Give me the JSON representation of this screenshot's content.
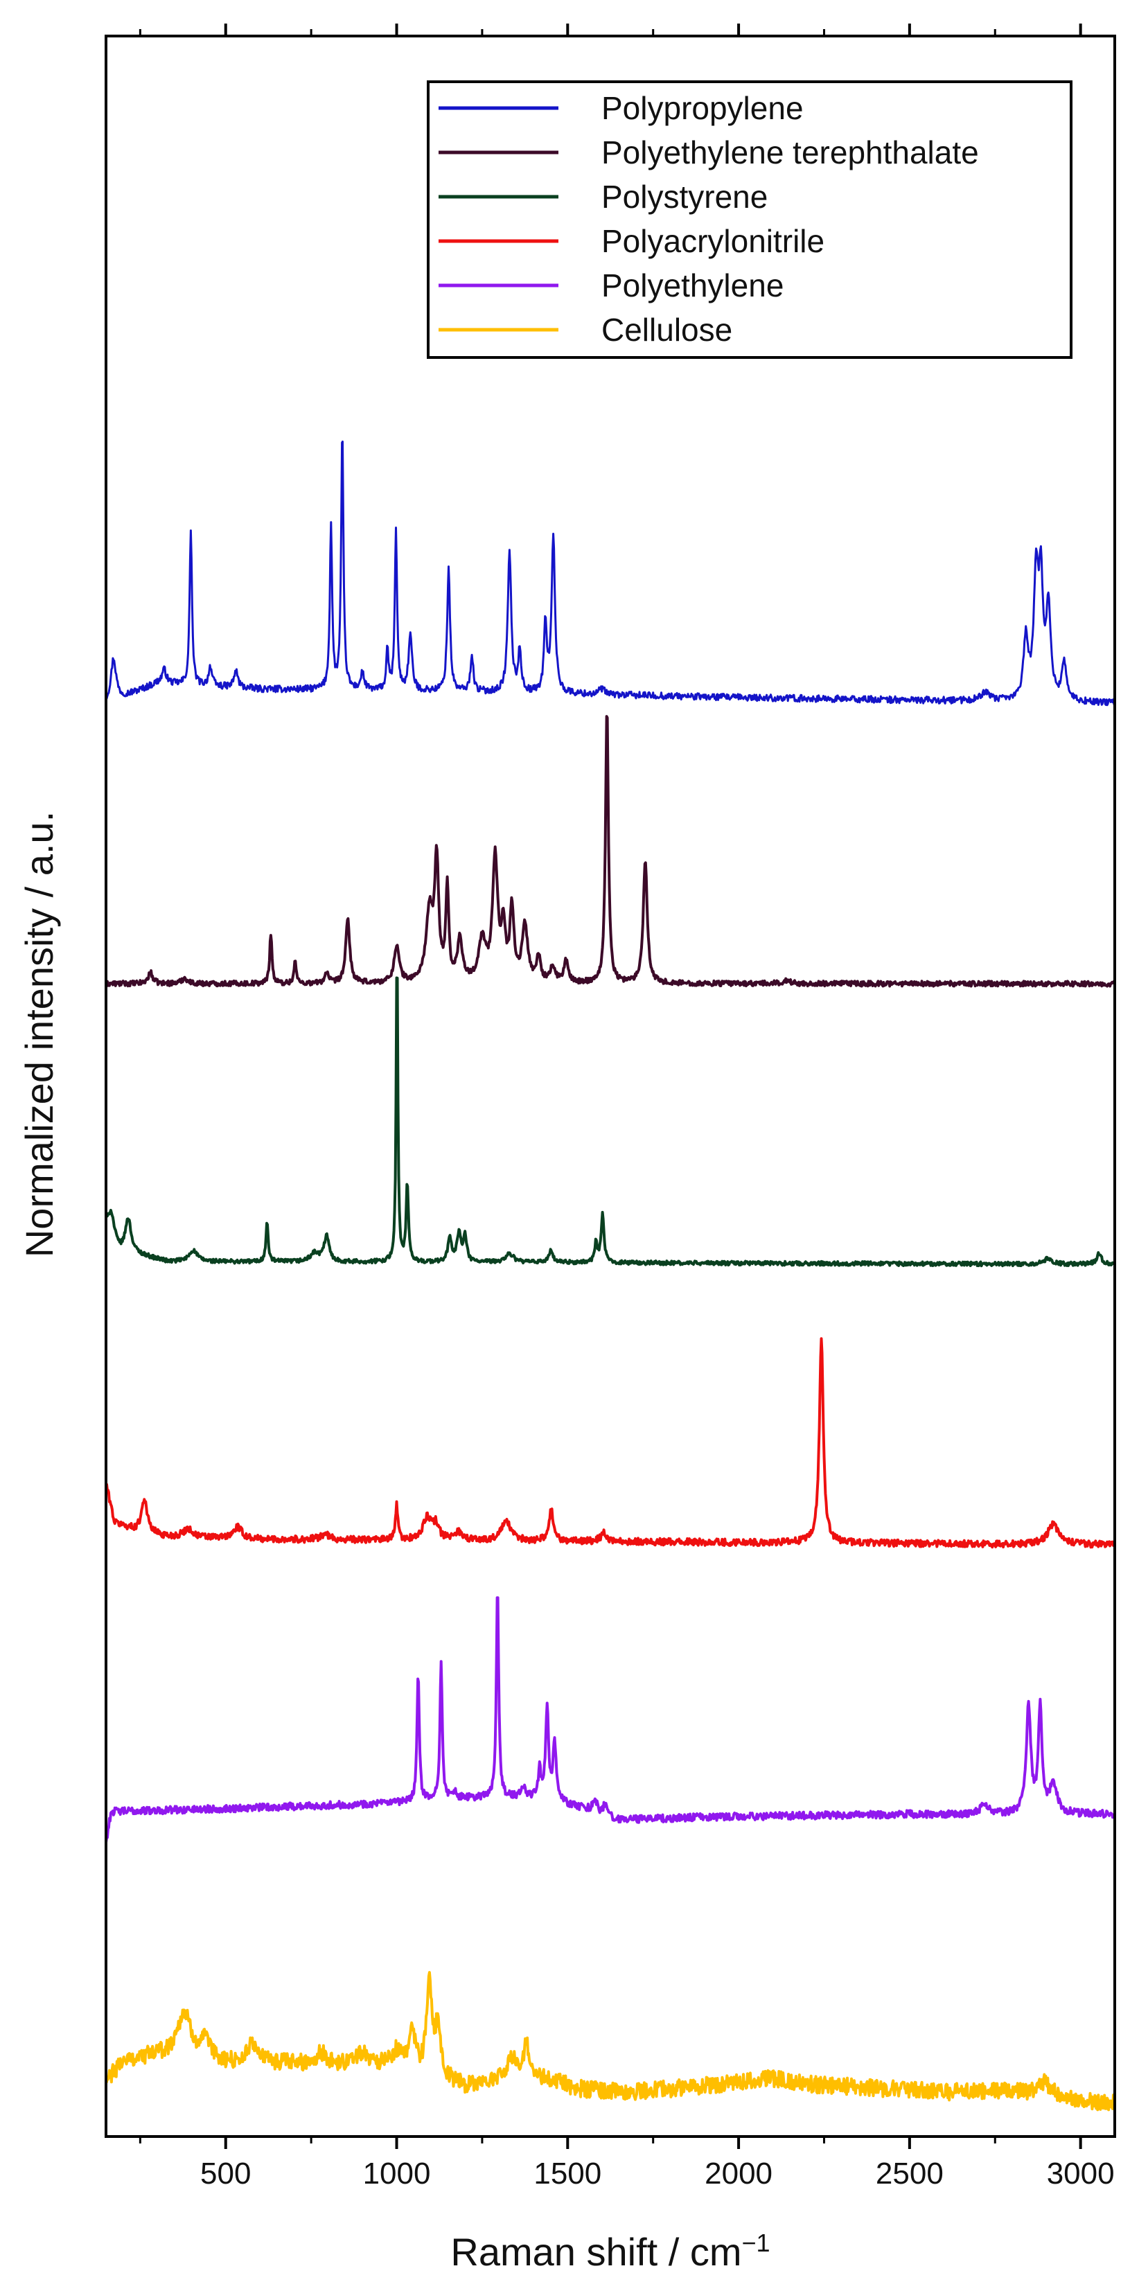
{
  "chart_data": {
    "type": "line",
    "title": "",
    "xlabel": "Raman shift / cm",
    "xlabel_superscript": "−1",
    "ylabel": "Normalized intensity / a.u.",
    "xlim": [
      150,
      3100
    ],
    "xticks": [
      500,
      1000,
      1500,
      2000,
      2500,
      3000
    ],
    "xtick_labels": [
      "500",
      "1000",
      "1500",
      "2000",
      "2500",
      "3000"
    ],
    "y_scale": "normalized, vertically offset traces; no y tick labels",
    "grid": false,
    "legend_position": "top-right",
    "series": [
      {
        "name": "Polypropylene",
        "color": "#1414c8",
        "offset": 5.0,
        "noise": 0.012,
        "baseline": [
          [
            150,
            0.0
          ],
          [
            300,
            0.07
          ],
          [
            600,
            0.05
          ],
          [
            1200,
            0.04
          ],
          [
            2000,
            0.02
          ],
          [
            3100,
            0.0
          ]
        ],
        "peaks": [
          [
            172,
            0.15,
            9
          ],
          [
            320,
            0.05,
            8
          ],
          [
            398,
            0.56,
            4
          ],
          [
            455,
            0.07,
            6
          ],
          [
            530,
            0.06,
            7
          ],
          [
            808,
            0.59,
            4
          ],
          [
            841,
            0.92,
            4
          ],
          [
            900,
            0.06,
            6
          ],
          [
            973,
            0.14,
            4
          ],
          [
            998,
            0.57,
            4
          ],
          [
            1040,
            0.2,
            6
          ],
          [
            1152,
            0.44,
            5
          ],
          [
            1220,
            0.13,
            5
          ],
          [
            1330,
            0.5,
            6
          ],
          [
            1360,
            0.15,
            5
          ],
          [
            1435,
            0.24,
            5
          ],
          [
            1458,
            0.55,
            6
          ],
          [
            1600,
            0.02,
            10
          ],
          [
            2720,
            0.03,
            15
          ],
          [
            2840,
            0.22,
            8
          ],
          [
            2870,
            0.43,
            8
          ],
          [
            2884,
            0.4,
            7
          ],
          [
            2906,
            0.33,
            8
          ],
          [
            2952,
            0.14,
            8
          ]
        ]
      },
      {
        "name": "Polyethylene terephthalate",
        "color": "#3c0a28",
        "offset": 4.0,
        "noise": 0.009,
        "baseline": [
          [
            150,
            0.0
          ],
          [
            3100,
            0.0
          ]
        ],
        "peaks": [
          [
            280,
            0.04,
            8
          ],
          [
            380,
            0.02,
            10
          ],
          [
            632,
            0.18,
            4
          ],
          [
            703,
            0.08,
            4
          ],
          [
            795,
            0.04,
            6
          ],
          [
            857,
            0.23,
            7
          ],
          [
            1000,
            0.13,
            9
          ],
          [
            1096,
            0.25,
            12
          ],
          [
            1117,
            0.42,
            7
          ],
          [
            1148,
            0.34,
            5
          ],
          [
            1185,
            0.15,
            9
          ],
          [
            1250,
            0.15,
            12
          ],
          [
            1288,
            0.44,
            9
          ],
          [
            1312,
            0.19,
            7
          ],
          [
            1337,
            0.26,
            7
          ],
          [
            1375,
            0.2,
            10
          ],
          [
            1415,
            0.09,
            7
          ],
          [
            1456,
            0.05,
            10
          ],
          [
            1495,
            0.08,
            7
          ],
          [
            1615,
            0.99,
            5
          ],
          [
            1727,
            0.44,
            7
          ],
          [
            2140,
            0.01,
            15
          ]
        ]
      },
      {
        "name": "Polystyrene",
        "color": "#0a4020",
        "offset": 3.0,
        "noise": 0.007,
        "baseline": [
          [
            150,
            0.14
          ],
          [
            190,
            0.05
          ],
          [
            230,
            0.04
          ],
          [
            330,
            0.01
          ],
          [
            3100,
            0.0
          ]
        ],
        "peaks": [
          [
            165,
            0.08,
            10
          ],
          [
            215,
            0.12,
            10
          ],
          [
            405,
            0.04,
            14
          ],
          [
            621,
            0.14,
            4
          ],
          [
            760,
            0.03,
            15
          ],
          [
            795,
            0.09,
            9
          ],
          [
            1001,
            1.12,
            3
          ],
          [
            1031,
            0.28,
            4
          ],
          [
            1155,
            0.09,
            6
          ],
          [
            1182,
            0.1,
            7
          ],
          [
            1200,
            0.09,
            6
          ],
          [
            1330,
            0.03,
            15
          ],
          [
            1450,
            0.04,
            8
          ],
          [
            1583,
            0.07,
            5
          ],
          [
            1602,
            0.17,
            5
          ],
          [
            2905,
            0.02,
            15
          ],
          [
            3054,
            0.04,
            8
          ]
        ]
      },
      {
        "name": "Polyacrylonitrile",
        "color": "#ee1010",
        "offset": 2.0,
        "noise": 0.012,
        "baseline": [
          [
            150,
            0.22
          ],
          [
            175,
            0.08
          ],
          [
            240,
            0.05
          ],
          [
            330,
            0.03
          ],
          [
            600,
            0.02
          ],
          [
            3100,
            0.0
          ]
        ],
        "peaks": [
          [
            262,
            0.12,
            10
          ],
          [
            390,
            0.03,
            15
          ],
          [
            535,
            0.04,
            15
          ],
          [
            790,
            0.02,
            15
          ],
          [
            1000,
            0.13,
            4
          ],
          [
            1090,
            0.08,
            15
          ],
          [
            1115,
            0.05,
            10
          ],
          [
            1180,
            0.03,
            15
          ],
          [
            1320,
            0.07,
            16
          ],
          [
            1452,
            0.11,
            8
          ],
          [
            1605,
            0.03,
            10
          ],
          [
            2242,
            0.72,
            7
          ],
          [
            2920,
            0.07,
            20
          ]
        ]
      },
      {
        "name": "Polyethylene",
        "color": "#9018ee",
        "offset": 1.0,
        "noise": 0.013,
        "baseline": [
          [
            150,
            -0.06
          ],
          [
            165,
            0.05
          ],
          [
            500,
            0.06
          ],
          [
            1000,
            0.08
          ],
          [
            1250,
            0.1
          ],
          [
            1400,
            0.1
          ],
          [
            1550,
            0.06
          ],
          [
            1650,
            0.02
          ],
          [
            1900,
            0.03
          ],
          [
            2500,
            0.04
          ],
          [
            2800,
            0.04
          ],
          [
            3100,
            0.04
          ]
        ],
        "peaks": [
          [
            1063,
            0.46,
            4
          ],
          [
            1130,
            0.5,
            4
          ],
          [
            1170,
            0.03,
            6
          ],
          [
            1295,
            0.76,
            4
          ],
          [
            1370,
            0.04,
            6
          ],
          [
            1418,
            0.12,
            4
          ],
          [
            1440,
            0.34,
            5
          ],
          [
            1462,
            0.2,
            6
          ],
          [
            1580,
            0.04,
            8
          ],
          [
            1610,
            0.04,
            6
          ],
          [
            2720,
            0.04,
            12
          ],
          [
            2848,
            0.38,
            8
          ],
          [
            2882,
            0.38,
            6
          ],
          [
            2920,
            0.1,
            14
          ]
        ]
      },
      {
        "name": "Cellulose",
        "color": "#ffbe00",
        "offset": 0.0,
        "noise": 0.03,
        "baseline": [
          [
            150,
            0.08
          ],
          [
            160,
            0.1
          ],
          [
            200,
            0.16
          ],
          [
            300,
            0.18
          ],
          [
            500,
            0.15
          ],
          [
            700,
            0.15
          ],
          [
            900,
            0.14
          ],
          [
            1000,
            0.14
          ],
          [
            1200,
            0.07
          ],
          [
            1400,
            0.1
          ],
          [
            1500,
            0.06
          ],
          [
            1700,
            0.05
          ],
          [
            2000,
            0.08
          ],
          [
            2300,
            0.07
          ],
          [
            2600,
            0.05
          ],
          [
            2800,
            0.05
          ],
          [
            3000,
            0.02
          ],
          [
            3100,
            0.01
          ]
        ],
        "peaks": [
          [
            378,
            0.16,
            25
          ],
          [
            440,
            0.06,
            20
          ],
          [
            580,
            0.07,
            20
          ],
          [
            780,
            0.04,
            20
          ],
          [
            900,
            0.05,
            25
          ],
          [
            1000,
            0.05,
            15
          ],
          [
            1045,
            0.16,
            10
          ],
          [
            1095,
            0.33,
            9
          ],
          [
            1120,
            0.17,
            10
          ],
          [
            1336,
            0.07,
            20
          ],
          [
            1380,
            0.11,
            12
          ],
          [
            1480,
            0.02,
            20
          ],
          [
            2100,
            0.02,
            60
          ],
          [
            2895,
            0.05,
            25
          ]
        ]
      }
    ]
  }
}
